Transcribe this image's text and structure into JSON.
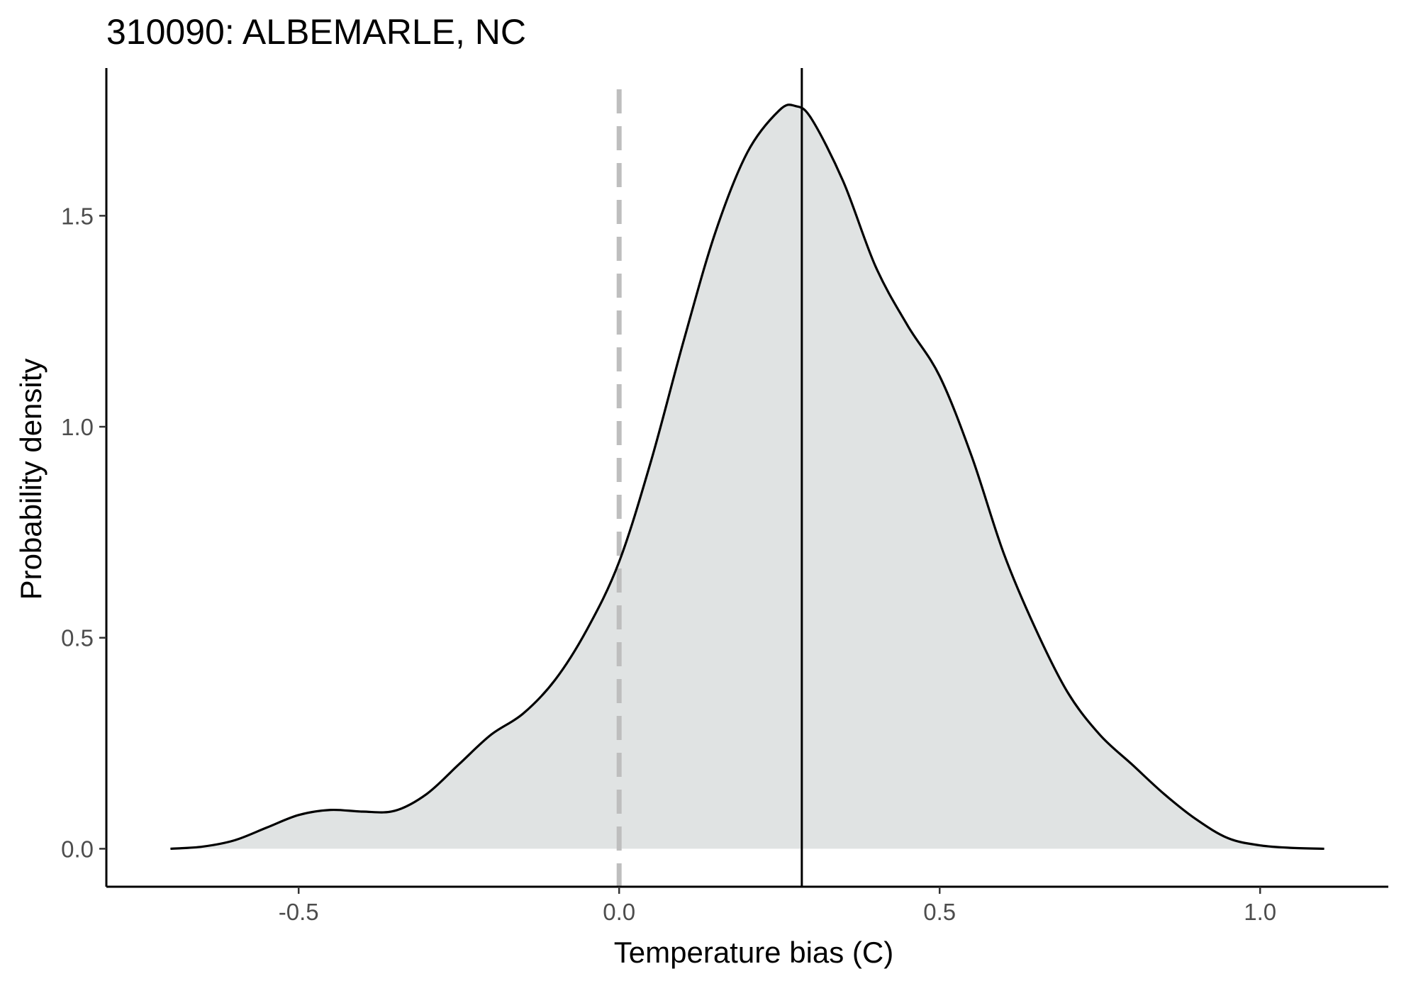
{
  "chart_data": {
    "type": "area",
    "title": "310090: ALBEMARLE, NC",
    "xlabel": "Temperature bias (C)",
    "ylabel": "Probability density",
    "xlim": [
      -0.8,
      1.2
    ],
    "ylim": [
      -0.09,
      1.85
    ],
    "x_ticks": [
      -0.5,
      0.0,
      0.5,
      1.0
    ],
    "x_tick_labels": [
      "-0.5",
      "0.0",
      "0.5",
      "1.0"
    ],
    "y_ticks": [
      0.0,
      0.5,
      1.0,
      1.5
    ],
    "y_tick_labels": [
      "0.0",
      "0.5",
      "1.0",
      "1.5"
    ],
    "grid": false,
    "fill_color": "#e0e3e3",
    "line_color": "#000000",
    "reference_line_dashed": {
      "x": 0.0,
      "color": "#bebebe"
    },
    "reference_line_solid": {
      "x": 0.285,
      "color": "#000000"
    },
    "series": [
      {
        "x": [
          -0.7,
          -0.65,
          -0.6,
          -0.55,
          -0.5,
          -0.45,
          -0.4,
          -0.35,
          -0.3,
          -0.25,
          -0.2,
          -0.15,
          -0.1,
          -0.05,
          0.0,
          0.05,
          0.1,
          0.15,
          0.2,
          0.25,
          0.275,
          0.3,
          0.35,
          0.4,
          0.45,
          0.5,
          0.55,
          0.6,
          0.65,
          0.7,
          0.75,
          0.8,
          0.85,
          0.9,
          0.95,
          1.0,
          1.05,
          1.1
        ],
        "y": [
          0.0,
          0.005,
          0.02,
          0.05,
          0.08,
          0.092,
          0.088,
          0.09,
          0.13,
          0.2,
          0.27,
          0.32,
          0.4,
          0.52,
          0.68,
          0.92,
          1.2,
          1.46,
          1.65,
          1.75,
          1.76,
          1.73,
          1.58,
          1.38,
          1.24,
          1.12,
          0.93,
          0.7,
          0.52,
          0.37,
          0.27,
          0.2,
          0.13,
          0.07,
          0.025,
          0.008,
          0.002,
          0.0
        ]
      }
    ]
  }
}
